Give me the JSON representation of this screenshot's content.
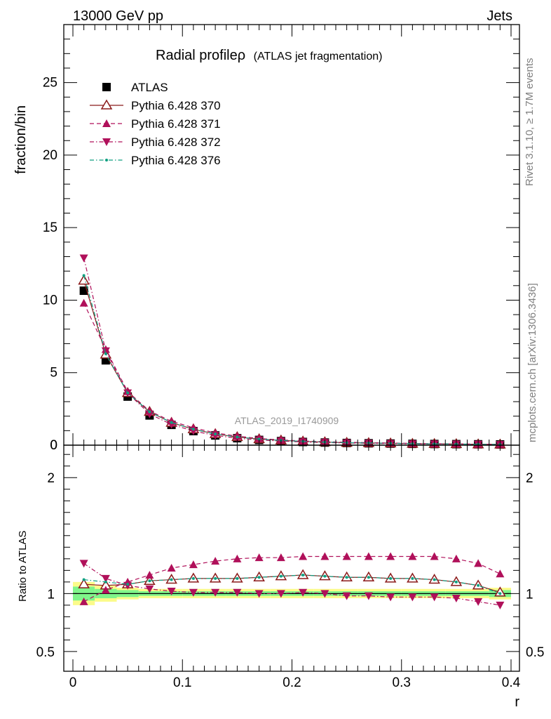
{
  "header": {
    "left": "13000 GeV pp",
    "right": "Jets"
  },
  "side_texts": {
    "rivet": "Rivet 3.1.10, ≥ 1.7M events",
    "mcplots": "mcplots.cern.ch [arXiv:1306.3436]"
  },
  "colors": {
    "atlas": "#000000",
    "p370": "#8b1a1a",
    "p371": "#b0105a",
    "p372": "#b0105a",
    "p376": "#0e9f80",
    "band_inner": "#7ff58a",
    "band_outer": "#fbfb8a",
    "watermark": "#999999"
  },
  "chart_data": [
    {
      "type": "scatter",
      "title": "Radial profileρ",
      "subtitle": "(ATLAS jet fragmentation)",
      "ylabel": "fraction/bin",
      "xlabel": "",
      "watermark": "ATLAS_2019_I1740909",
      "xlim": [
        0,
        0.4
      ],
      "ylim": [
        0,
        29
      ],
      "x_ticks": [
        0,
        0.1,
        0.2,
        0.3,
        0.4
      ],
      "y_ticks": [
        0,
        5,
        10,
        15,
        20,
        25
      ],
      "y_tick_labels": [
        "0",
        "5",
        "10",
        "15",
        "20",
        "25"
      ],
      "legend_position": "top-left",
      "x": [
        0.01,
        0.03,
        0.05,
        0.07,
        0.09,
        0.11,
        0.13,
        0.15,
        0.17,
        0.19,
        0.21,
        0.23,
        0.25,
        0.27,
        0.29,
        0.31,
        0.33,
        0.35,
        0.37,
        0.39
      ],
      "series": [
        {
          "name": "ATLAS",
          "marker": "square",
          "values": [
            10.65,
            5.85,
            3.35,
            2.05,
            1.4,
            0.97,
            0.67,
            0.48,
            0.36,
            0.28,
            0.22,
            0.18,
            0.15,
            0.13,
            0.11,
            0.09,
            0.08,
            0.07,
            0.06,
            0.05
          ]
        },
        {
          "name": "Pythia 6.428 370",
          "marker": "triangle-up-open",
          "line": "solid",
          "values": [
            11.35,
            6.25,
            3.6,
            2.3,
            1.55,
            1.1,
            0.77,
            0.56,
            0.42,
            0.33,
            0.26,
            0.21,
            0.17,
            0.15,
            0.13,
            0.1,
            0.09,
            0.08,
            0.06,
            0.05
          ]
        },
        {
          "name": "Pythia 6.428 371",
          "marker": "triangle-up",
          "line": "dashed",
          "values": [
            9.8,
            6.6,
            3.7,
            2.35,
            1.65,
            1.2,
            0.85,
            0.62,
            0.46,
            0.36,
            0.29,
            0.24,
            0.2,
            0.17,
            0.15,
            0.12,
            0.1,
            0.09,
            0.07,
            0.06
          ]
        },
        {
          "name": "Pythia 6.428 372",
          "marker": "triangle-down",
          "line": "dashdot",
          "values": [
            12.9,
            6.5,
            3.6,
            2.15,
            1.43,
            0.98,
            0.67,
            0.48,
            0.36,
            0.28,
            0.22,
            0.18,
            0.15,
            0.13,
            0.11,
            0.09,
            0.08,
            0.07,
            0.06,
            0.045
          ]
        },
        {
          "name": "Pythia 6.428 376",
          "marker": "dot",
          "line": "dashdot",
          "values": [
            11.7,
            6.3,
            3.6,
            2.3,
            1.56,
            1.1,
            0.77,
            0.56,
            0.42,
            0.33,
            0.26,
            0.21,
            0.17,
            0.15,
            0.13,
            0.1,
            0.09,
            0.08,
            0.06,
            0.05
          ]
        }
      ]
    },
    {
      "type": "scatter",
      "title": "",
      "ylabel": "Ratio to ATLAS",
      "xlabel": "r",
      "xlim": [
        0,
        0.4
      ],
      "ylim": [
        0.33,
        2.28
      ],
      "x_ticks": [
        0,
        0.1,
        0.2,
        0.3,
        0.4
      ],
      "x_tick_labels": [
        "0",
        "0.1",
        "0.2",
        "0.3",
        "0.4"
      ],
      "y_ticks": [
        0.5,
        1,
        2
      ],
      "y_tick_labels": [
        "0.5",
        "1",
        "2"
      ],
      "x": [
        0.01,
        0.03,
        0.05,
        0.07,
        0.09,
        0.11,
        0.13,
        0.15,
        0.17,
        0.19,
        0.21,
        0.23,
        0.25,
        0.27,
        0.29,
        0.31,
        0.33,
        0.35,
        0.37,
        0.39
      ],
      "bands": {
        "bin_edges": [
          0,
          0.02,
          0.04,
          0.06,
          0.08,
          0.1,
          0.12,
          0.14,
          0.16,
          0.18,
          0.2,
          0.22,
          0.24,
          0.26,
          0.28,
          0.3,
          0.32,
          0.34,
          0.36,
          0.38,
          0.4
        ],
        "inner": [
          0.06,
          0.04,
          0.03,
          0.02,
          0.02,
          0.02,
          0.02,
          0.02,
          0.02,
          0.02,
          0.02,
          0.02,
          0.02,
          0.02,
          0.02,
          0.02,
          0.02,
          0.02,
          0.02,
          0.03
        ],
        "outer": [
          0.1,
          0.07,
          0.05,
          0.04,
          0.04,
          0.04,
          0.04,
          0.04,
          0.04,
          0.04,
          0.04,
          0.04,
          0.04,
          0.04,
          0.04,
          0.04,
          0.04,
          0.04,
          0.04,
          0.05
        ]
      },
      "series": [
        {
          "name": "Pythia 6.428 370",
          "values": [
            1.08,
            1.07,
            1.08,
            1.11,
            1.12,
            1.13,
            1.13,
            1.13,
            1.14,
            1.15,
            1.16,
            1.15,
            1.14,
            1.14,
            1.13,
            1.13,
            1.12,
            1.1,
            1.07,
            1.01
          ]
        },
        {
          "name": "Pythia 6.428 371",
          "values": [
            0.93,
            1.03,
            1.1,
            1.16,
            1.22,
            1.25,
            1.28,
            1.3,
            1.31,
            1.31,
            1.32,
            1.32,
            1.32,
            1.32,
            1.32,
            1.32,
            1.32,
            1.3,
            1.26,
            1.17
          ]
        },
        {
          "name": "Pythia 6.428 372",
          "values": [
            1.26,
            1.13,
            1.07,
            1.04,
            1.02,
            1.01,
            1.01,
            1.01,
            1.0,
            1.0,
            1.01,
            1.0,
            0.98,
            0.98,
            0.97,
            0.97,
            0.97,
            0.96,
            0.93,
            0.9
          ]
        },
        {
          "name": "Pythia 6.428 376",
          "values": [
            1.12,
            1.1,
            1.08,
            1.11,
            1.12,
            1.13,
            1.13,
            1.13,
            1.14,
            1.15,
            1.16,
            1.15,
            1.14,
            1.14,
            1.13,
            1.13,
            1.12,
            1.1,
            1.07,
            1.0
          ]
        }
      ]
    }
  ]
}
